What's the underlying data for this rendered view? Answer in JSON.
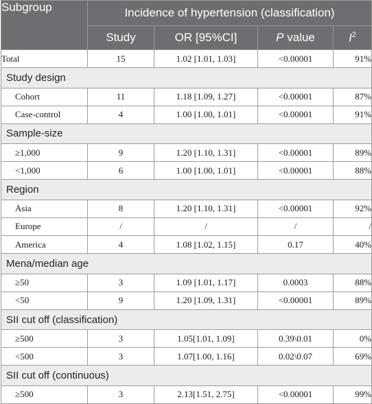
{
  "header": {
    "subgroup": "Subgroup",
    "span_title": "Incidence of hypertension (classification)",
    "col_study": "Study",
    "col_or": "OR [95%CI]",
    "col_p_italic": "P",
    "col_p_rest": " value",
    "col_i_base": "I",
    "col_i_sup": "2"
  },
  "rows": [
    {
      "type": "data",
      "indent": false,
      "label": "Total",
      "study": "15",
      "or": "1.02 [1.01, 1.03]",
      "p": "<0.00001",
      "i2": "91%"
    },
    {
      "type": "group",
      "label": "Study design"
    },
    {
      "type": "data",
      "indent": true,
      "label": "Cohort",
      "study": "11",
      "or": "1.18 [1.09, 1.27]",
      "p": "<0.00001",
      "i2": "87%"
    },
    {
      "type": "data",
      "indent": true,
      "label": "Case-control",
      "study": "4",
      "or": "1.00 [1.00, 1.01]",
      "p": "<0.00001",
      "i2": "91%"
    },
    {
      "type": "group",
      "label": "Sample-size"
    },
    {
      "type": "data",
      "indent": true,
      "label": "≥1,000",
      "study": "9",
      "or": "1.20 [1.10, 1.31]",
      "p": "<0.00001",
      "i2": "89%"
    },
    {
      "type": "data",
      "indent": true,
      "label": "<1,000",
      "study": "6",
      "or": "1.00 [1.00, 1.01]",
      "p": "<0.00001",
      "i2": "88%"
    },
    {
      "type": "group",
      "label": "Region"
    },
    {
      "type": "data",
      "indent": true,
      "label": "Asia",
      "study": "8",
      "or": "1.20 [1.10, 1.31]",
      "p": "<0.00001",
      "i2": "92%"
    },
    {
      "type": "data",
      "indent": true,
      "label": "Europe",
      "study": "/",
      "or": "/",
      "p": "/",
      "i2": "/"
    },
    {
      "type": "data",
      "indent": true,
      "label": "America",
      "study": "4",
      "or": "1.08 [1.02, 1.15]",
      "p": "0.17",
      "i2": "40%"
    },
    {
      "type": "group",
      "label": "Mena/median age"
    },
    {
      "type": "data",
      "indent": true,
      "label": "≥50",
      "study": "3",
      "or": "1.09 [1.01, 1.17]",
      "p": "0.0003",
      "i2": "88%"
    },
    {
      "type": "data",
      "indent": true,
      "label": "<50",
      "study": "9",
      "or": "1.20 [1.09, 1.31]",
      "p": "<0.00001",
      "i2": "89%"
    },
    {
      "type": "group",
      "label": "SII cut off (classification)"
    },
    {
      "type": "data",
      "indent": true,
      "label": "≥500",
      "study": "3",
      "or": "1.05[1.01, 1.09]",
      "p": "0.39\\0.01",
      "i2": "0%"
    },
    {
      "type": "data",
      "indent": true,
      "label": "<500",
      "study": "3",
      "or": "1.07[1.00, 1.16]",
      "p": "0.02\\0.07",
      "i2": "69%"
    },
    {
      "type": "group",
      "label": "SII cut off (continuous)"
    },
    {
      "type": "data",
      "indent": true,
      "label": "≥500",
      "study": "3",
      "or": "2.13[1.51, 2.75]",
      "p": "<0.00001",
      "i2": "99%"
    }
  ]
}
